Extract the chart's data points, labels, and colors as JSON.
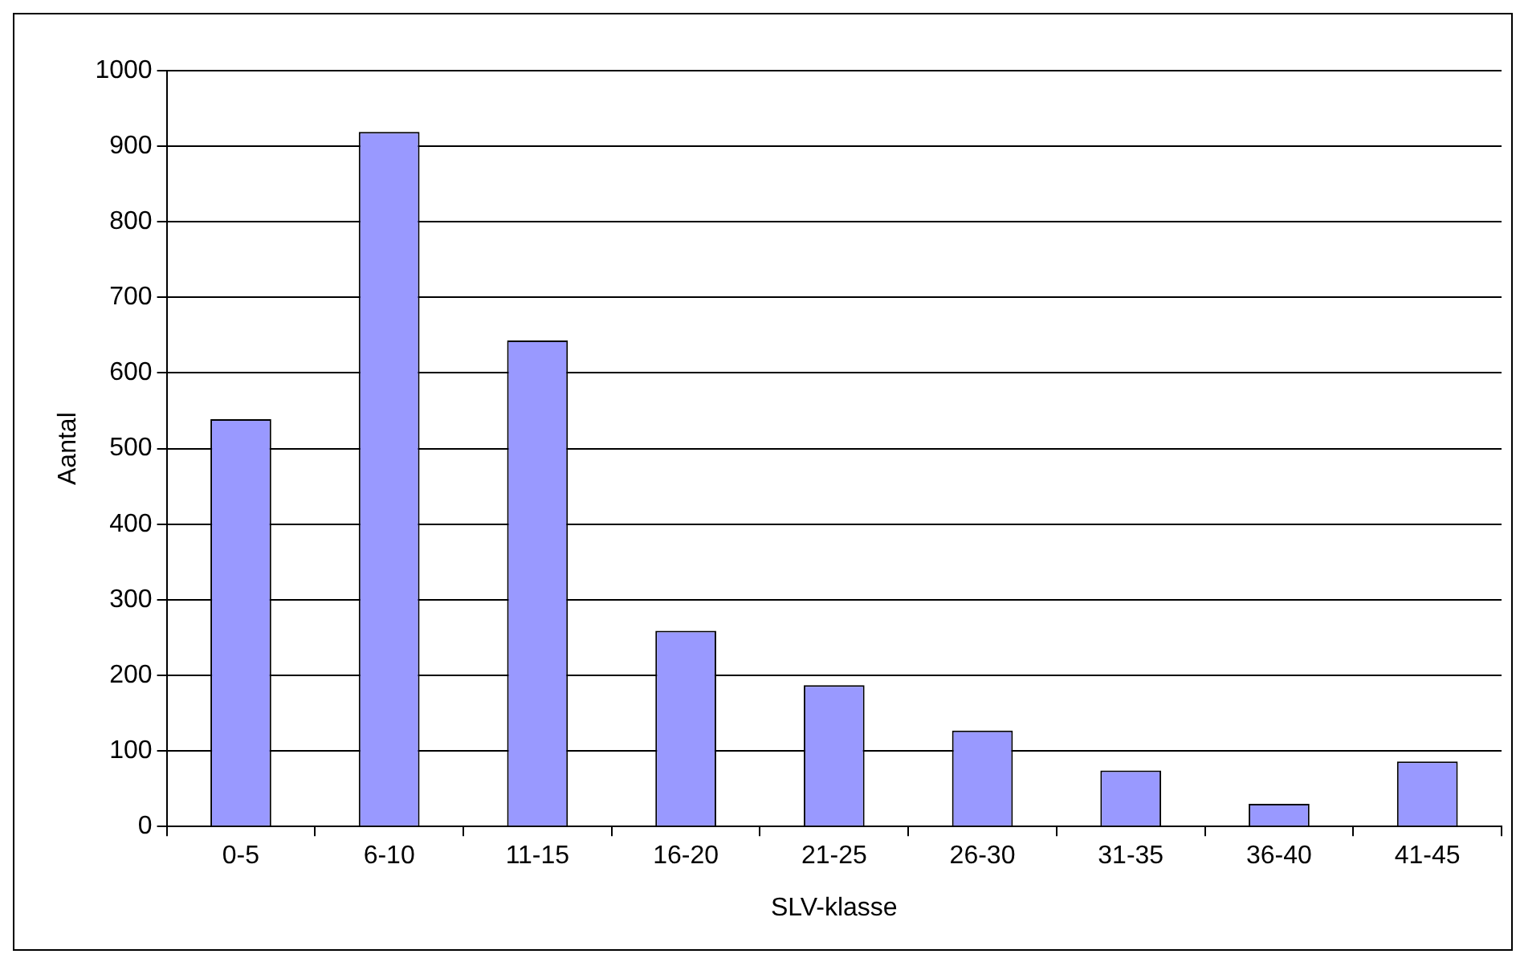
{
  "chart_data": {
    "type": "bar",
    "xlabel": "SLV-klasse",
    "ylabel": "Aantal",
    "categories": [
      "0-5",
      "6-10",
      "11-15",
      "16-20",
      "21-25",
      "26-30",
      "31-35",
      "36-40",
      "41-45"
    ],
    "values": [
      539,
      919,
      643,
      259,
      187,
      127,
      74,
      30,
      86
    ],
    "color": "#9999ff",
    "ylim": [
      0,
      1000
    ],
    "yticks": [
      0,
      100,
      200,
      300,
      400,
      500,
      600,
      700,
      800,
      900,
      1000
    ],
    "grid": "y",
    "legend": false
  }
}
